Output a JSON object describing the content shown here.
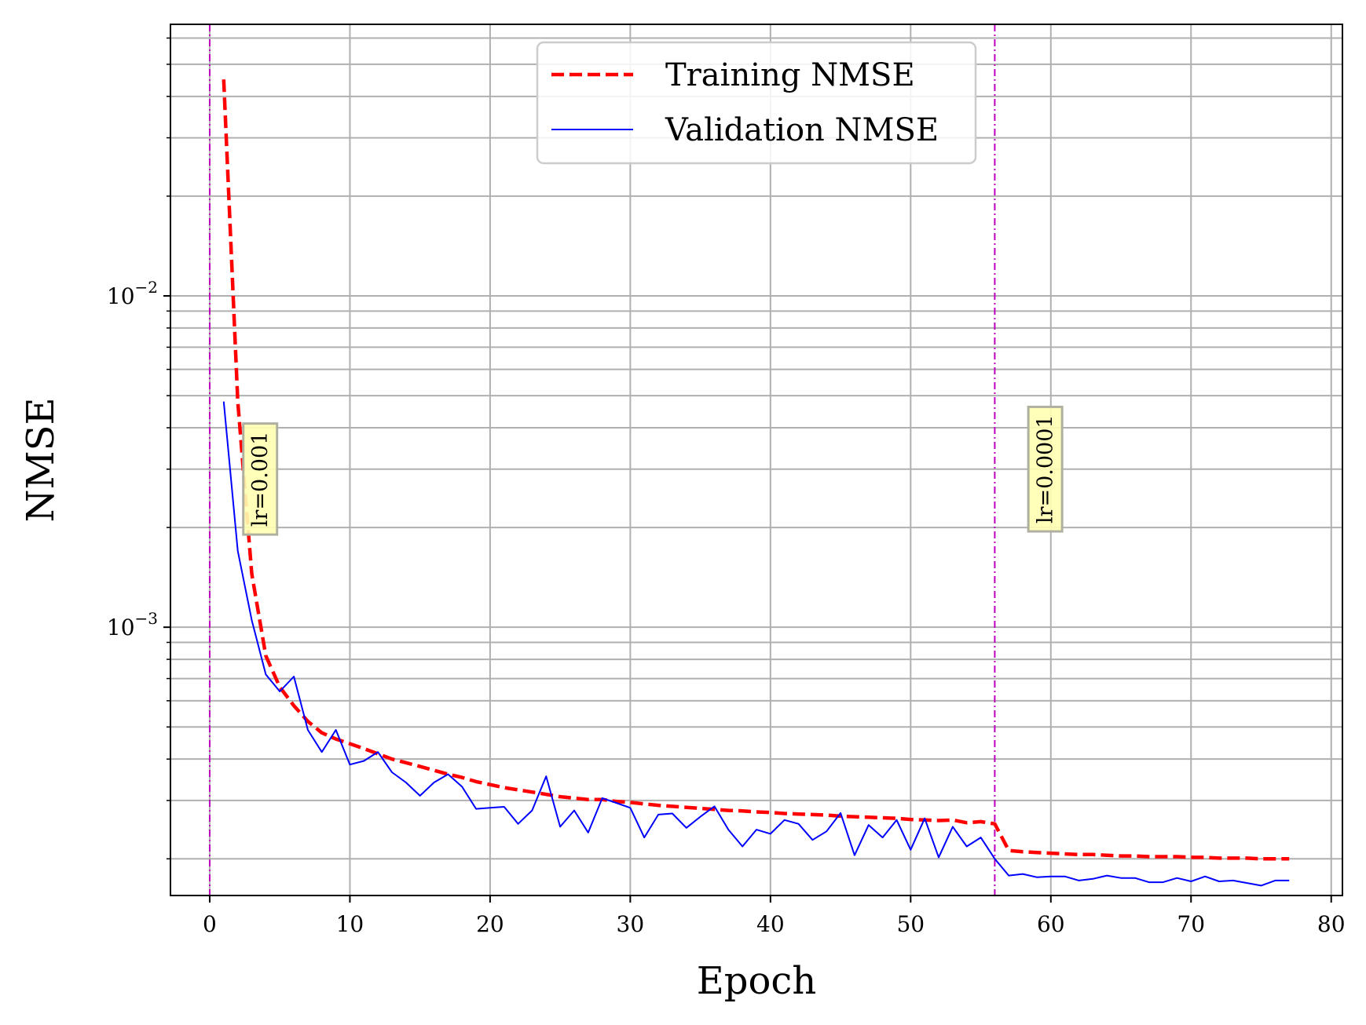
{
  "chart_data": {
    "type": "line",
    "title": "",
    "xlabel": "Epoch",
    "ylabel": "NMSE",
    "xlim": [
      -2.8,
      80.8
    ],
    "ylim": [
      0.000155,
      0.066
    ],
    "yscale": "log",
    "xticks": [
      0,
      10,
      20,
      30,
      40,
      50,
      60,
      70,
      80
    ],
    "xtick_labels": [
      "0",
      "10",
      "20",
      "30",
      "40",
      "50",
      "60",
      "70",
      "80"
    ],
    "yticks_major": [
      0.001,
      0.01
    ],
    "ytick_labels": [
      {
        "base": "10",
        "exp": "−3"
      },
      {
        "base": "10",
        "exp": "−2"
      }
    ],
    "grid": true,
    "legend_position": "upper-center",
    "vlines": [
      {
        "x": 0,
        "color": "#bf00bf",
        "style": "dash-dot"
      },
      {
        "x": 56,
        "color": "#bf00bf",
        "style": "dash-dot"
      }
    ],
    "annotations": [
      {
        "text": "lr=0.001",
        "x": 3.6,
        "y": 0.0028,
        "rotation": -90
      },
      {
        "text": "lr=0.0001",
        "x": 59.6,
        "y": 0.003,
        "rotation": -90
      }
    ],
    "series": [
      {
        "name": "Training NMSE",
        "color": "#ff0000",
        "style": "dashed",
        "x": [
          1,
          2,
          3,
          4,
          5,
          6,
          7,
          8,
          9,
          10,
          11,
          12,
          13,
          14,
          15,
          16,
          17,
          18,
          19,
          20,
          21,
          22,
          23,
          24,
          25,
          26,
          27,
          28,
          29,
          30,
          31,
          32,
          33,
          34,
          35,
          36,
          37,
          38,
          39,
          40,
          41,
          42,
          43,
          44,
          45,
          46,
          47,
          48,
          49,
          50,
          51,
          52,
          53,
          54,
          55,
          56,
          57,
          58,
          59,
          60,
          61,
          62,
          63,
          64,
          65,
          66,
          67,
          68,
          69,
          70,
          71,
          72,
          73,
          74,
          75,
          76,
          77
        ],
        "y": [
          0.045,
          0.0048,
          0.00145,
          0.00082,
          0.00066,
          0.00058,
          0.00052,
          0.00048,
          0.00046,
          0.000445,
          0.00043,
          0.000415,
          0.0004,
          0.00039,
          0.00038,
          0.00037,
          0.00036,
          0.000352,
          0.000342,
          0.000335,
          0.000328,
          0.000323,
          0.000318,
          0.000313,
          0.000308,
          0.000305,
          0.000302,
          0.000302,
          0.000298,
          0.000296,
          0.000293,
          0.00029,
          0.000288,
          0.000286,
          0.000284,
          0.000282,
          0.00028,
          0.000279,
          0.000277,
          0.000276,
          0.000274,
          0.000273,
          0.000272,
          0.000271,
          0.000269,
          0.000268,
          0.000267,
          0.000266,
          0.000265,
          0.000263,
          0.000262,
          0.000261,
          0.000262,
          0.000257,
          0.000259,
          0.000255,
          0.000212,
          0.00021,
          0.000209,
          0.000208,
          0.000207,
          0.000206,
          0.000206,
          0.000205,
          0.000204,
          0.000204,
          0.000203,
          0.000203,
          0.000203,
          0.000202,
          0.000202,
          0.000201,
          0.000201,
          0.000201,
          0.0002,
          0.0002,
          0.0002
        ]
      },
      {
        "name": "Validation NMSE",
        "color": "#0000ff",
        "style": "solid",
        "x": [
          1,
          2,
          3,
          4,
          5,
          6,
          7,
          8,
          9,
          10,
          11,
          12,
          13,
          14,
          15,
          16,
          17,
          18,
          19,
          20,
          21,
          22,
          23,
          24,
          25,
          26,
          27,
          28,
          29,
          30,
          31,
          32,
          33,
          34,
          35,
          36,
          37,
          38,
          39,
          40,
          41,
          42,
          43,
          44,
          45,
          46,
          47,
          48,
          49,
          50,
          51,
          52,
          53,
          54,
          55,
          56,
          57,
          58,
          59,
          60,
          61,
          62,
          63,
          64,
          65,
          66,
          67,
          68,
          69,
          70,
          71,
          72,
          73,
          74,
          75,
          76,
          77
        ],
        "y": [
          0.0048,
          0.0017,
          0.00105,
          0.00072,
          0.00064,
          0.00071,
          0.00049,
          0.00042,
          0.00049,
          0.000385,
          0.000395,
          0.00042,
          0.000365,
          0.00034,
          0.00031,
          0.00034,
          0.00036,
          0.00033,
          0.000283,
          0.000285,
          0.000287,
          0.000255,
          0.00028,
          0.000355,
          0.00025,
          0.00028,
          0.00024,
          0.000305,
          0.000295,
          0.000285,
          0.000232,
          0.000272,
          0.000274,
          0.000248,
          0.000268,
          0.000288,
          0.000245,
          0.000218,
          0.000245,
          0.000238,
          0.000262,
          0.000255,
          0.000228,
          0.000242,
          0.000275,
          0.000205,
          0.000253,
          0.000232,
          0.000262,
          0.000213,
          0.000265,
          0.000202,
          0.00025,
          0.000218,
          0.000232,
          0.0002,
          0.000178,
          0.00018,
          0.000176,
          0.000177,
          0.000177,
          0.000172,
          0.000174,
          0.000178,
          0.000175,
          0.000175,
          0.00017,
          0.00017,
          0.000175,
          0.000171,
          0.000177,
          0.000171,
          0.000172,
          0.000169,
          0.000166,
          0.000172,
          0.000172
        ]
      }
    ]
  }
}
